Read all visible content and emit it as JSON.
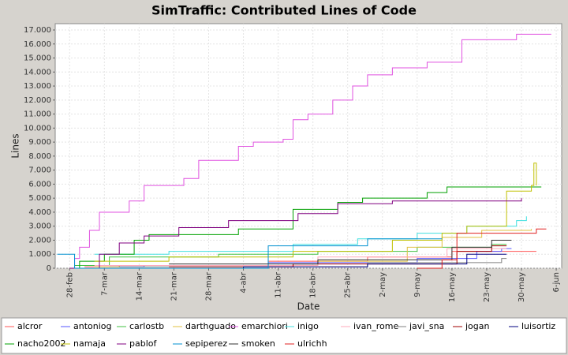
{
  "chart_data": {
    "type": "line",
    "step": true,
    "title": "SimTraffic: Contributed Lines of Code",
    "x_label": "Date",
    "y_label": "Lines",
    "grid": true,
    "xlim": [
      -2.9,
      99.1
    ],
    "ylim": [
      0,
      17450
    ],
    "xticks": [
      {
        "value": 0,
        "label": "28-feb"
      },
      {
        "value": 7,
        "label": "7-mar"
      },
      {
        "value": 14,
        "label": "14-mar"
      },
      {
        "value": 21,
        "label": "21-mar"
      },
      {
        "value": 28,
        "label": "28-mar"
      },
      {
        "value": 35,
        "label": "4-abr"
      },
      {
        "value": 42,
        "label": "11-abr"
      },
      {
        "value": 49,
        "label": "18-abr"
      },
      {
        "value": 56,
        "label": "25-abr"
      },
      {
        "value": 63,
        "label": "2-may"
      },
      {
        "value": 70,
        "label": "9-may"
      },
      {
        "value": 77,
        "label": "16-may"
      },
      {
        "value": 84,
        "label": "23-may"
      },
      {
        "value": 91,
        "label": "30-may"
      },
      {
        "value": 98,
        "label": "6-jun"
      }
    ],
    "yticks": [
      0,
      {
        "value": 1000,
        "label": "1.000"
      },
      {
        "value": 2000,
        "label": "2.000"
      },
      {
        "value": 3000,
        "label": "3.000"
      },
      {
        "value": 4000,
        "label": "4.000"
      },
      {
        "value": 5000,
        "label": "5.000"
      },
      {
        "value": 6000,
        "label": "6.000"
      },
      {
        "value": 7000,
        "label": "7.000"
      },
      {
        "value": 8000,
        "label": "8.000"
      },
      {
        "value": 9000,
        "label": "9.000"
      },
      {
        "value": 10000,
        "label": "10.000"
      },
      {
        "value": 11000,
        "label": "11.000"
      },
      {
        "value": 12000,
        "label": "12.000"
      },
      {
        "value": 13000,
        "label": "13.000"
      },
      {
        "value": 14000,
        "label": "14.000"
      },
      {
        "value": 15000,
        "label": "15.000"
      },
      {
        "value": 16000,
        "label": "16.000"
      },
      {
        "value": 17000,
        "label": "17.000"
      }
    ],
    "series": [
      {
        "name": "alcror",
        "color": "#ff5555",
        "x": [
          3,
          10,
          40,
          60,
          77,
          94
        ],
        "values": [
          100,
          200,
          500,
          800,
          1200,
          1200
        ]
      },
      {
        "name": "antoniog",
        "color": "#5555ff",
        "x": [
          8,
          15,
          40,
          70,
          82,
          87,
          89
        ],
        "values": [
          100,
          200,
          400,
          700,
          1200,
          1400,
          1400
        ]
      },
      {
        "name": "carlostb",
        "color": "#40c040",
        "x": [
          1,
          8,
          30,
          50,
          70,
          85,
          88
        ],
        "values": [
          200,
          800,
          1000,
          1200,
          1500,
          1700,
          1700
        ]
      },
      {
        "name": "darthguado",
        "color": "#e0c040",
        "x": [
          5,
          10,
          50,
          68,
          75,
          83,
          93
        ],
        "values": [
          100,
          200,
          500,
          1500,
          2200,
          2700,
          2800
        ]
      },
      {
        "name": "emarchiori",
        "color": "#e052e0",
        "x": [
          0,
          1,
          2,
          4,
          6,
          12,
          15,
          23,
          26,
          34,
          37,
          43,
          45,
          48,
          53,
          57,
          60,
          65,
          72,
          79,
          90,
          97
        ],
        "values": [
          0,
          700,
          1500,
          2700,
          4000,
          4800,
          5900,
          6400,
          7700,
          8700,
          9000,
          9200,
          10600,
          11000,
          12000,
          13000,
          13800,
          14300,
          14700,
          16300,
          16700,
          16700
        ]
      },
      {
        "name": "inigo",
        "color": "#40e0e0",
        "x": [
          5,
          20,
          45,
          58,
          70,
          80,
          90,
          92
        ],
        "values": [
          1000,
          1200,
          1700,
          2100,
          2500,
          3000,
          3400,
          3700
        ]
      },
      {
        "name": "ivan_rome",
        "color": "#ffaabb",
        "x": [
          5,
          50,
          76,
          88
        ],
        "values": [
          200,
          800,
          1400,
          1400
        ]
      },
      {
        "name": "javi_sna",
        "color": "#808080",
        "x": [
          10,
          60,
          87,
          88
        ],
        "values": [
          100,
          400,
          700,
          700
        ]
      },
      {
        "name": "jogan",
        "color": "#a00000",
        "x": [
          20,
          45,
          78,
          85,
          88
        ],
        "values": [
          100,
          300,
          1200,
          1600,
          1600
        ]
      },
      {
        "name": "luisortiz",
        "color": "#000080",
        "x": [
          20,
          35,
          60,
          80,
          88
        ],
        "values": [
          0,
          100,
          300,
          1000,
          1000
        ]
      },
      {
        "name": "nacho2002",
        "color": "#00a000",
        "x": [
          0,
          2,
          7,
          13,
          16,
          34,
          45,
          54,
          59,
          72,
          76,
          95
        ],
        "values": [
          0,
          500,
          1000,
          2000,
          2400,
          2800,
          4200,
          4700,
          5000,
          5400,
          5800,
          5800
        ]
      },
      {
        "name": "namaja",
        "color": "#c0c000",
        "x": [
          5,
          20,
          45,
          65,
          75,
          80,
          88,
          93,
          93.5,
          94
        ],
        "values": [
          500,
          800,
          1200,
          2000,
          2500,
          3000,
          5500,
          5900,
          7500,
          5900
        ]
      },
      {
        "name": "pablof",
        "color": "#800080",
        "x": [
          0,
          6,
          10,
          15,
          22,
          32,
          46,
          54,
          65,
          91
        ],
        "values": [
          0,
          1000,
          1800,
          2300,
          2900,
          3400,
          3900,
          4600,
          4800,
          5000
        ]
      },
      {
        "name": "sepiperez",
        "color": "#0090d0",
        "x": [
          -2.5,
          1,
          40,
          60,
          75
        ],
        "values": [
          1000,
          0,
          1600,
          2100,
          2100
        ]
      },
      {
        "name": "smoken",
        "color": "#303030",
        "x": [
          20,
          50,
          77,
          85,
          89
        ],
        "values": [
          300,
          600,
          1500,
          2000,
          2000
        ]
      },
      {
        "name": "ulrichh",
        "color": "#e02020",
        "x": [
          70,
          75,
          78,
          94,
          96
        ],
        "values": [
          0,
          600,
          2500,
          2800,
          2800
        ]
      }
    ]
  }
}
